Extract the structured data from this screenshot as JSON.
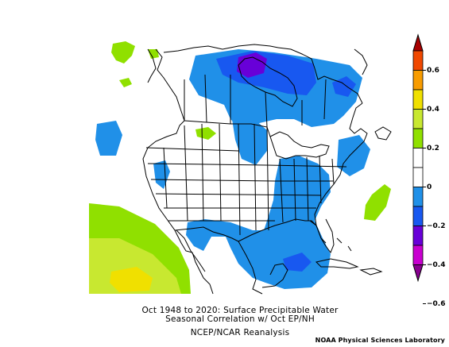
{
  "figure": {
    "title_line1": "Oct 1948 to 2020: Surface Precipitable Water",
    "title_line2": "Seasonal Correlation w/ Oct EP/NH",
    "source": "NCEP/NCAR Reanalysis",
    "credit": "NOAA Physical Sciences Laboratory"
  },
  "colorbar": {
    "labels": [
      "0.6",
      "0.4",
      "0.2",
      "0",
      "−0.2",
      "−0.4",
      "−0.6"
    ],
    "bins": [
      {
        "color": "#a80000"
      },
      {
        "color": "#f04800"
      },
      {
        "color": "#f89c00"
      },
      {
        "color": "#f0e000"
      },
      {
        "color": "#c8e830"
      },
      {
        "color": "#90e000"
      },
      {
        "color": "#ffffff"
      },
      {
        "color": "#ffffff"
      },
      {
        "color": "#2090e8"
      },
      {
        "color": "#1858f0"
      },
      {
        "color": "#6800d8"
      },
      {
        "color": "#c800d0"
      },
      {
        "color": "#880090"
      }
    ]
  },
  "map": {
    "region": "North America",
    "palette": {
      "light_green": "#90e000",
      "yellow_green": "#c8e830",
      "yellow": "#f0e000",
      "light_blue": "#2090e8",
      "blue": "#1858f0",
      "purple": "#6800d8",
      "outline": "#000000"
    }
  }
}
